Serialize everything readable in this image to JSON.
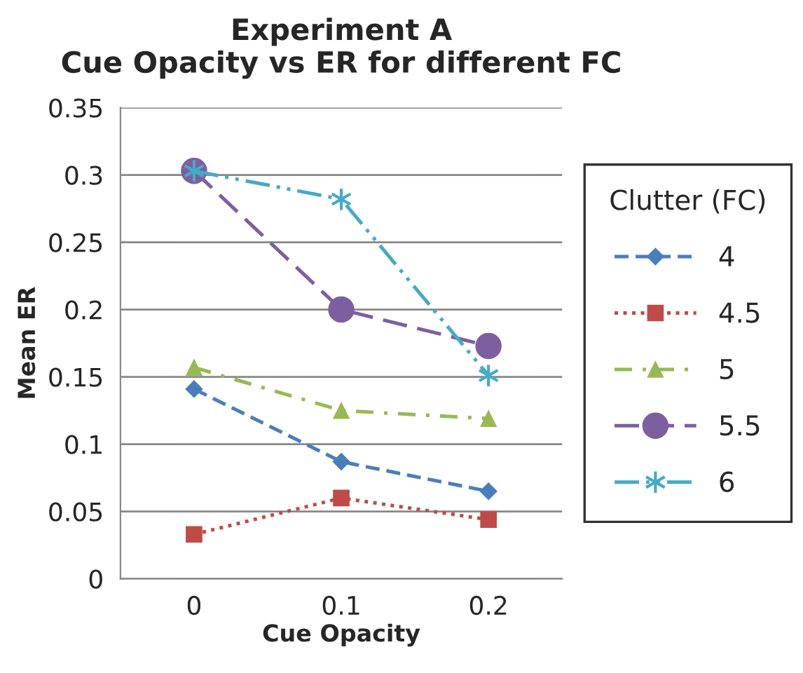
{
  "chart_data": {
    "type": "line",
    "title": "Experiment A\nCue Opacity vs ER for different FC",
    "xlabel": "Cue Opacity",
    "ylabel": "Mean ER",
    "categories": [
      "0",
      "0.1",
      "0.2"
    ],
    "series": [
      {
        "name": "4",
        "color": "#4a7ebb",
        "values": [
          0.141,
          0.087,
          0.065
        ],
        "marker": "diamond",
        "line_style": "dashed"
      },
      {
        "name": "4.5",
        "color": "#be4b48",
        "values": [
          0.033,
          0.06,
          0.044
        ],
        "marker": "square",
        "line_style": "dotted"
      },
      {
        "name": "5",
        "color": "#98b954",
        "values": [
          0.157,
          0.125,
          0.119
        ],
        "marker": "triangle",
        "line_style": "dashdot"
      },
      {
        "name": "5.5",
        "color": "#7d5fa0",
        "values": [
          0.303,
          0.2,
          0.173
        ],
        "marker": "circle",
        "line_style": "longdash"
      },
      {
        "name": "6",
        "color": "#46aac5",
        "values": [
          0.303,
          0.282,
          0.151
        ],
        "marker": "cross",
        "line_style": "dashdotdot"
      }
    ],
    "ylim": [
      0,
      0.35
    ],
    "yticks": [
      0,
      0.05,
      0.1,
      0.15,
      0.2,
      0.25,
      0.3,
      0.35
    ],
    "grid": "y",
    "legend": "right",
    "legend_title": "Clutter (FC)"
  }
}
